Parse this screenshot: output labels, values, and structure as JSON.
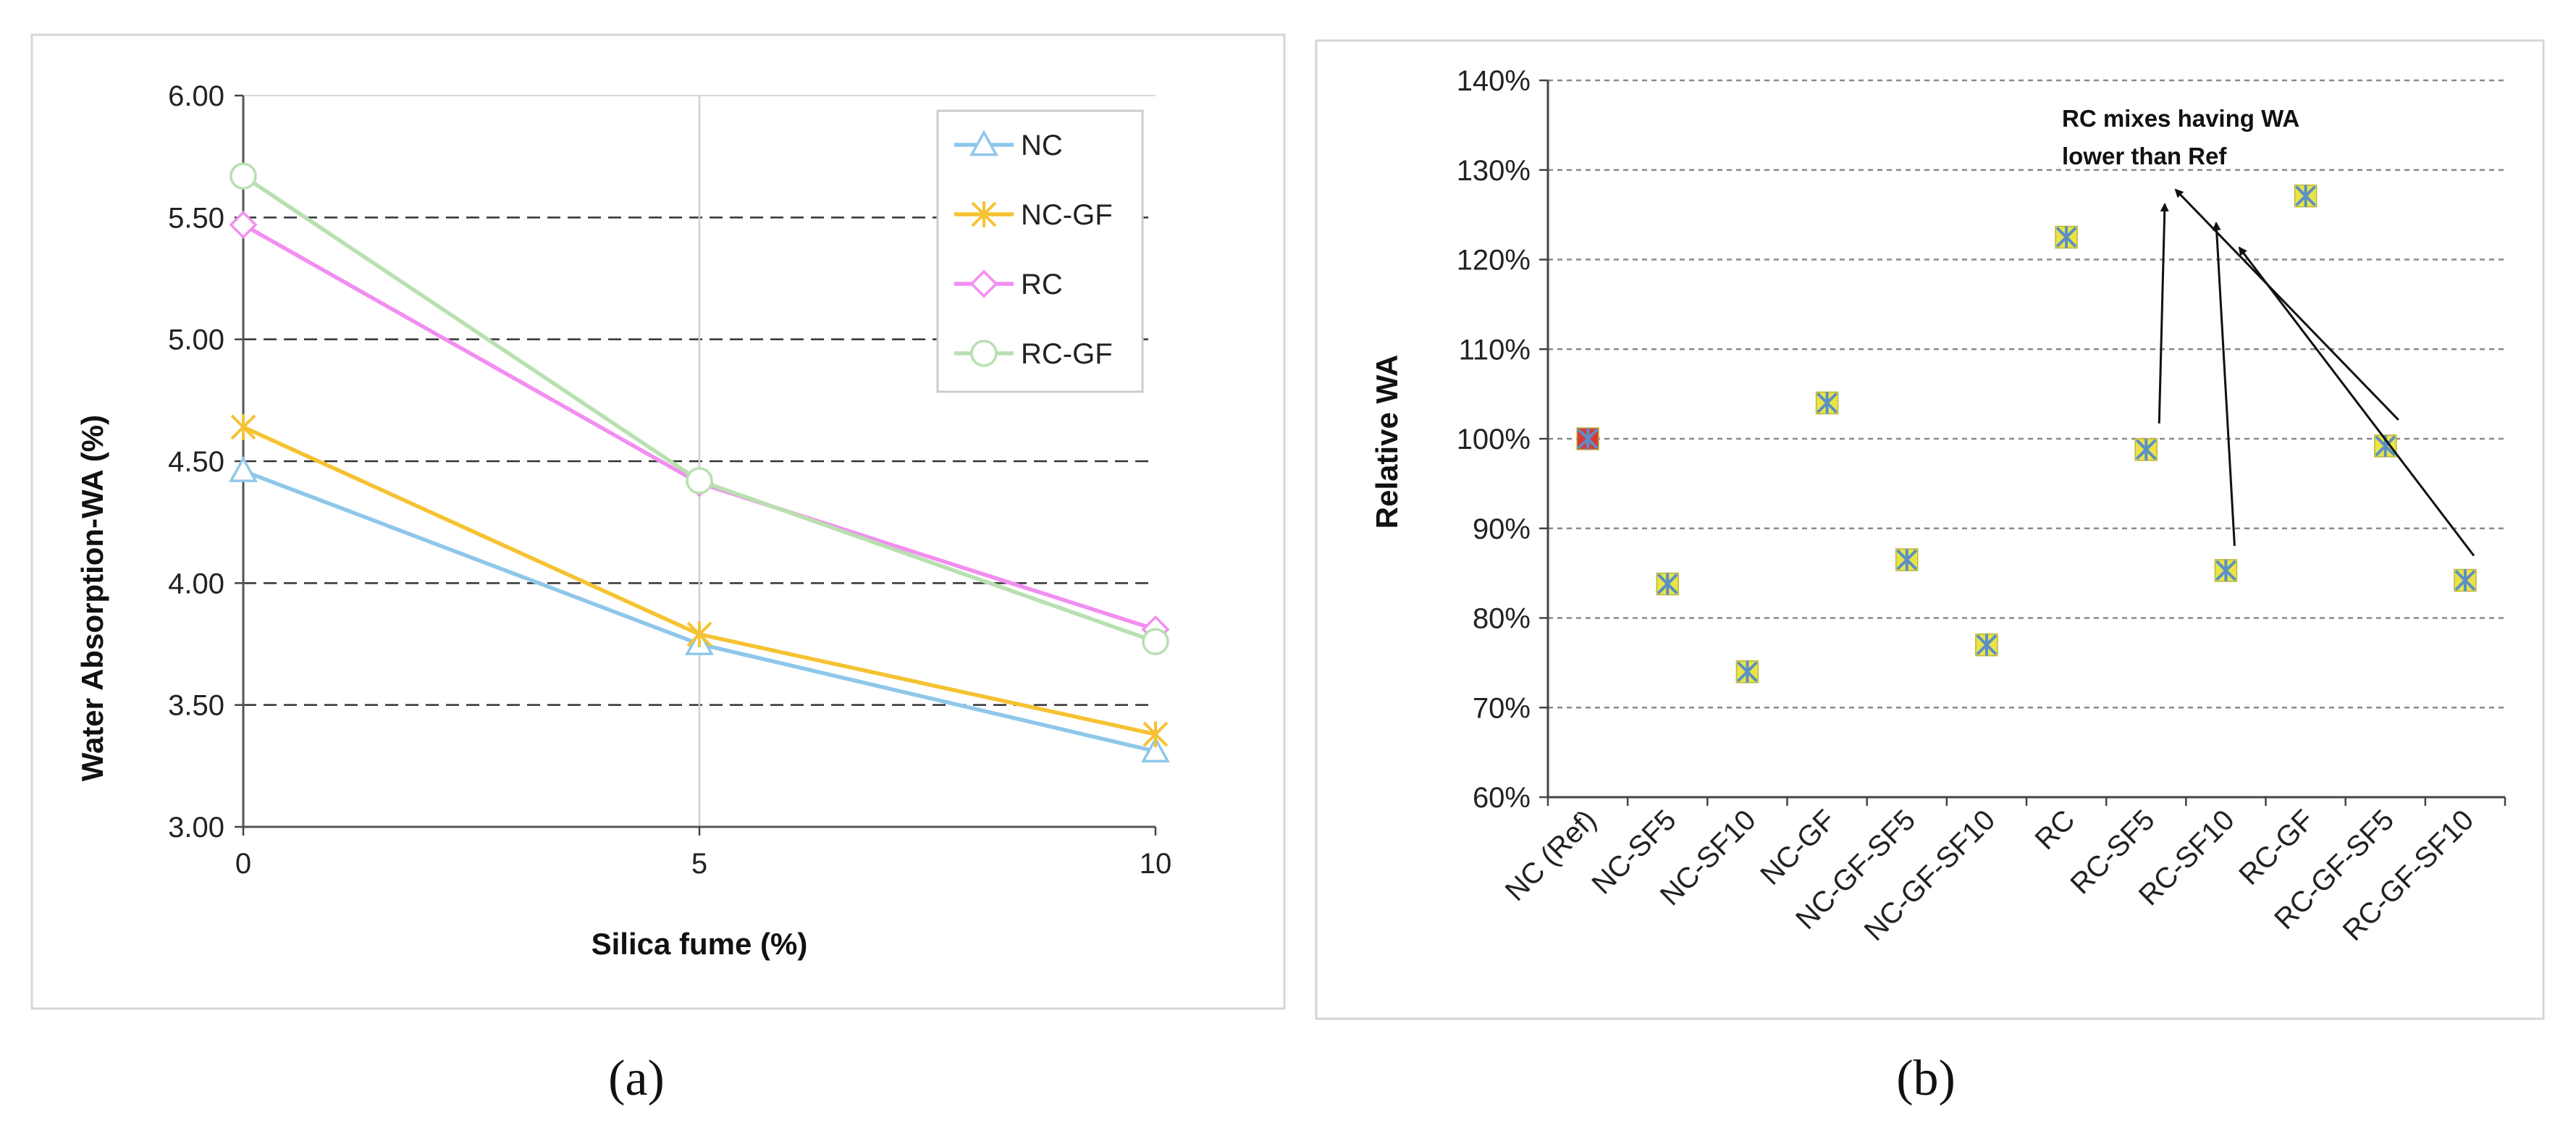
{
  "chart_data": [
    {
      "type": "line",
      "panel_label_text": "(a)",
      "xlabel": "Silica fume (%)",
      "ylabel": "Water Absorption-WA (%)",
      "x": [
        0,
        5,
        10
      ],
      "xlim": [
        0,
        10
      ],
      "ylim": [
        3.0,
        6.0
      ],
      "yticks": [
        "3.00",
        "3.50",
        "4.00",
        "4.50",
        "5.00",
        "5.50",
        "6.00"
      ],
      "xticks": [
        "0",
        "5",
        "10"
      ],
      "legend_position": "top-right",
      "series": [
        {
          "name": "NC",
          "values": [
            4.46,
            3.75,
            3.31
          ],
          "color": "#8fc7ea",
          "marker": "triangle"
        },
        {
          "name": "NC-GF",
          "values": [
            4.64,
            3.79,
            3.38
          ],
          "color": "#f5c232",
          "marker": "star"
        },
        {
          "name": "RC",
          "values": [
            5.47,
            4.41,
            3.81
          ],
          "color": "#f28ef0",
          "marker": "diamond"
        },
        {
          "name": "RC-GF",
          "values": [
            5.67,
            4.42,
            3.76
          ],
          "color": "#b8e0b0",
          "marker": "circle"
        }
      ]
    },
    {
      "type": "scatter",
      "panel_label_text": "(b)",
      "xlabel": "",
      "ylabel": "Relative WA",
      "ylim": [
        60,
        140
      ],
      "yticks": [
        "60%",
        "70%",
        "80%",
        "90%",
        "100%",
        "110%",
        "120%",
        "130%",
        "140%"
      ],
      "categories": [
        "NC (Ref)",
        "NC-SF5",
        "NC-SF10",
        "NC-GF",
        "NC-GF-SF5",
        "NC-GF-SF10",
        "RC",
        "RC-SF5",
        "RC-SF10",
        "RC-GF",
        "RC-GF-SF5",
        "RC-GF-SF10"
      ],
      "values": [
        100,
        83.8,
        74,
        104,
        86.5,
        77,
        122.5,
        98.8,
        85.3,
        127.1,
        99.2,
        84.2
      ],
      "highlight_index": 0,
      "annotation": {
        "line1": "RC mixes having WA",
        "line2": "lower than Ref",
        "targets": [
          "RC-SF5",
          "RC-SF10",
          "RC-GF-SF5",
          "RC-GF-SF10"
        ]
      }
    }
  ]
}
